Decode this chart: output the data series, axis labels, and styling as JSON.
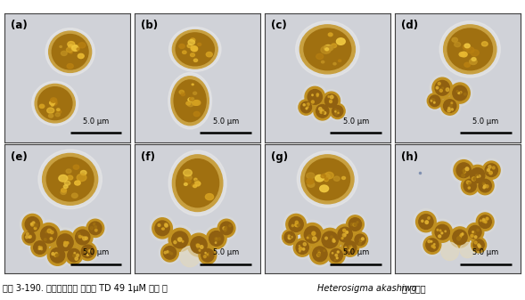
{
  "caption_regular": "그림 3-190. 광학현미경을 이용한 TD 49 1μM 처리 후 ",
  "caption_italic": "Heterosigma akashiwo",
  "caption_end": "의 형태관",
  "panel_labels": [
    "(a)",
    "(b)",
    "(c)",
    "(d)",
    "(e)",
    "(f)",
    "(g)",
    "(h)"
  ],
  "scale_bar_text": "5.0 μm",
  "panel_bg": "#d0d2d8",
  "fig_bg": "#ffffff",
  "caption_fontsize": 7.0,
  "label_fontsize": 8.5,
  "scale_fontsize": 6.0,
  "nrows": 2,
  "ncols": 4,
  "figsize": [
    5.89,
    3.37
  ],
  "dpi": 100
}
